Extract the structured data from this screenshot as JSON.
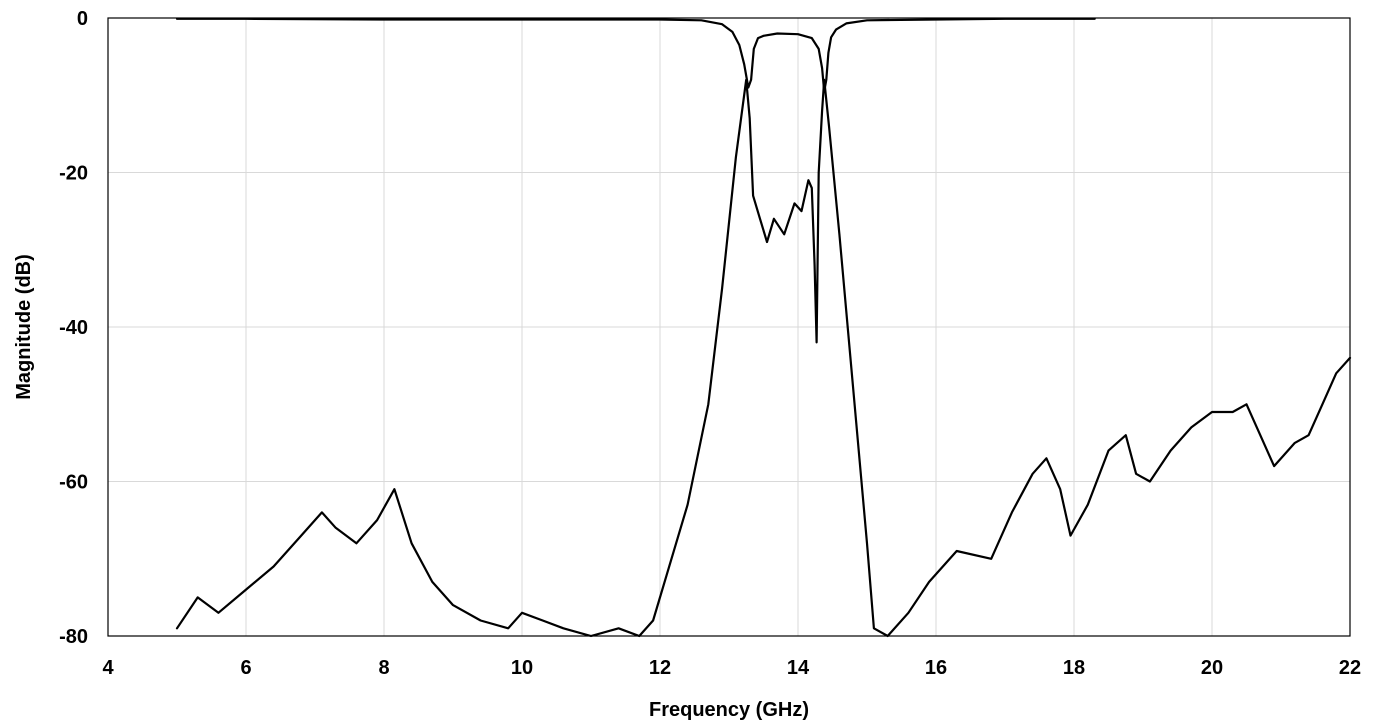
{
  "chart_data": {
    "type": "line",
    "title": "",
    "xlabel": "Frequency (GHz)",
    "ylabel": "Magnitude (dB)",
    "xlim": [
      4,
      22
    ],
    "ylim": [
      -80,
      0
    ],
    "x_ticks": [
      4,
      6,
      8,
      10,
      12,
      14,
      16,
      18,
      20,
      22
    ],
    "x_tick_labels": [
      "4",
      "6",
      "8",
      "10",
      "12",
      "14",
      "16",
      "18",
      "20",
      "22"
    ],
    "y_ticks": [
      0,
      -20,
      -40,
      -60,
      -80
    ],
    "y_tick_labels": [
      "0",
      "-20",
      "-40",
      "-60",
      "-80"
    ],
    "grid": true,
    "legend": "none",
    "line_color": "#000000",
    "grid_color": "#d9d9d9",
    "series": [
      {
        "x": [
          5.0,
          6.0,
          8.0,
          10.0,
          12.0,
          12.6,
          12.9,
          13.05,
          13.15,
          13.22,
          13.28,
          13.32,
          13.36,
          13.42,
          13.5,
          13.7,
          14.0,
          14.2,
          14.3,
          14.35,
          14.38,
          14.41,
          14.44,
          14.48,
          14.55,
          14.7,
          15.0,
          16.0,
          17.0,
          18.3
        ],
        "y": [
          -0.1,
          -0.1,
          -0.2,
          -0.2,
          -0.2,
          -0.3,
          -0.8,
          -1.8,
          -3.5,
          -6.0,
          -9.0,
          -8.0,
          -4.0,
          -2.6,
          -2.3,
          -2.0,
          -2.1,
          -2.6,
          -4.0,
          -6.5,
          -9.5,
          -8.0,
          -4.5,
          -2.5,
          -1.5,
          -0.7,
          -0.3,
          -0.2,
          -0.1,
          -0.1
        ]
      },
      {
        "x": [
          5.0,
          5.3,
          5.6,
          6.0,
          6.4,
          6.8,
          7.1,
          7.3,
          7.6,
          7.9,
          8.15,
          8.4,
          8.7,
          9.0,
          9.4,
          9.8,
          10.0,
          10.3,
          10.6,
          11.0,
          11.4,
          11.7,
          11.9,
          12.1,
          12.4,
          12.7,
          12.9,
          13.1,
          13.25,
          13.3,
          13.35,
          13.45,
          13.55,
          13.65,
          13.8,
          13.95,
          14.05,
          14.15,
          14.2,
          14.24,
          14.27,
          14.3,
          14.35,
          14.38,
          14.45,
          14.6,
          14.8,
          15.0,
          15.1,
          15.3,
          15.6,
          15.9,
          16.3,
          16.8,
          17.1,
          17.4,
          17.6,
          17.8,
          17.95,
          18.2,
          18.5,
          18.75,
          18.9,
          19.1,
          19.4,
          19.7,
          20.0,
          20.3,
          20.5,
          20.7,
          20.9,
          21.2,
          21.4,
          21.6,
          21.8,
          22.0
        ],
        "y": [
          -79,
          -75,
          -77,
          -74,
          -71,
          -67,
          -64,
          -66,
          -68,
          -65,
          -61,
          -68,
          -73,
          -76,
          -78,
          -79,
          -77,
          -78,
          -79,
          -80,
          -79,
          -80,
          -78,
          -72,
          -63,
          -50,
          -35,
          -18,
          -8,
          -13,
          -23,
          -26,
          -29,
          -26,
          -28,
          -24,
          -25,
          -21,
          -22,
          -32,
          -42,
          -20,
          -12,
          -8,
          -14,
          -28,
          -48,
          -68,
          -79,
          -80,
          -77,
          -73,
          -69,
          -70,
          -64,
          -59,
          -57,
          -61,
          -67,
          -63,
          -56,
          -54,
          -59,
          -60,
          -56,
          -53,
          -51,
          -51,
          -50,
          -54,
          -58,
          -55,
          -54,
          -50,
          -46,
          -44
        ]
      }
    ]
  }
}
